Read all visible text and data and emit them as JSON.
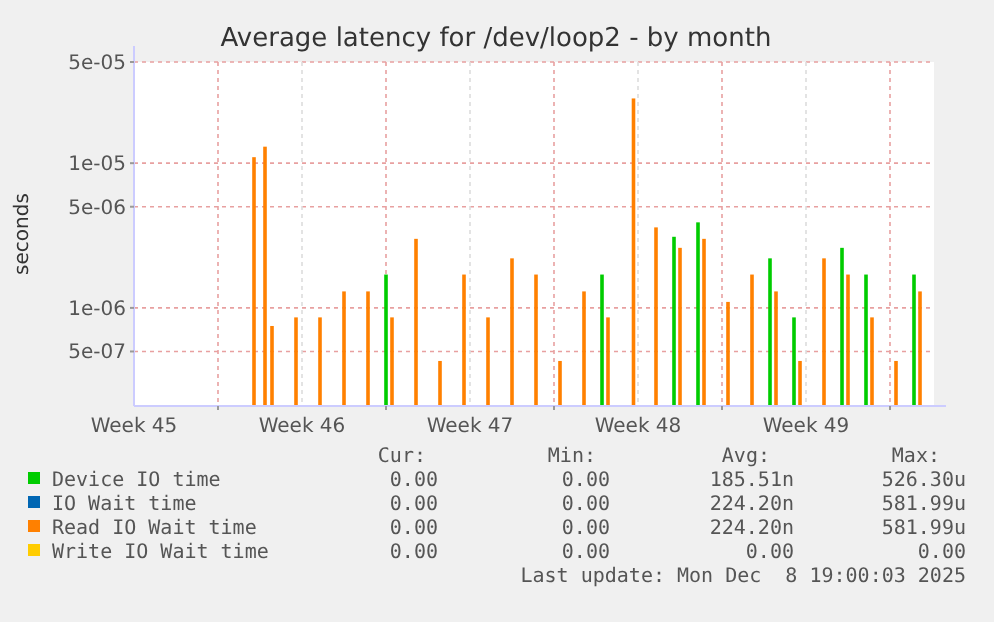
{
  "chart_data": {
    "type": "bar",
    "title": "Average latency for /dev/loop2 - by month",
    "ylabel": "seconds",
    "x": [
      "2025-11-10T10:30",
      "2025-11-10T21:30",
      "2025-11-11T04:30",
      "2025-11-12T04:30",
      "2025-11-13T04:30",
      "2025-11-14T04:30",
      "2025-11-15T04:30",
      "2025-11-16T04:30",
      "2025-11-17T04:30",
      "2025-11-18T04:30",
      "2025-11-19T04:30",
      "2025-11-20T04:30",
      "2025-11-21T04:30",
      "2025-11-22T04:30",
      "2025-11-23T04:30",
      "2025-11-24T04:30",
      "2025-11-25T04:30",
      "2025-11-26T06:00",
      "2025-11-27T04:30",
      "2025-11-28T04:30",
      "2025-11-29T04:30",
      "2025-11-30T04:30",
      "2025-12-01T04:30",
      "2025-12-02T04:30",
      "2025-12-03T04:30",
      "2025-12-04T04:30",
      "2025-12-05T04:30",
      "2025-12-06T04:30",
      "2025-12-07T04:30",
      "2025-12-08T04:30"
    ],
    "series": [
      {
        "name": "Device IO time",
        "color": "#00cc00",
        "values": [
          null,
          null,
          null,
          null,
          null,
          null,
          null,
          1.7e-06,
          null,
          null,
          null,
          null,
          null,
          null,
          null,
          null,
          1.7e-06,
          null,
          null,
          3.1e-06,
          3.9e-06,
          null,
          null,
          2.2e-06,
          8.6e-07,
          null,
          2.6e-06,
          1.7e-06,
          null,
          1.7e-06
        ]
      },
      {
        "name": "IO Wait time",
        "color": "#0066b3",
        "values": [
          null,
          null,
          null,
          null,
          null,
          null,
          null,
          null,
          null,
          null,
          null,
          null,
          null,
          null,
          null,
          null,
          null,
          null,
          null,
          null,
          null,
          null,
          null,
          null,
          null,
          null,
          null,
          null,
          null,
          null
        ]
      },
      {
        "name": "Read IO Wait time",
        "color": "#ff8000",
        "values": [
          1.1e-05,
          1.3e-05,
          7.5e-07,
          8.6e-07,
          8.6e-07,
          1.3e-06,
          1.3e-06,
          8.6e-07,
          3e-06,
          4.3e-07,
          1.7e-06,
          8.6e-07,
          2.2e-06,
          1.7e-06,
          4.3e-07,
          1.3e-06,
          8.6e-07,
          2.8e-05,
          3.6e-06,
          2.6e-06,
          3e-06,
          1.1e-06,
          1.7e-06,
          1.3e-06,
          4.3e-07,
          2.2e-06,
          1.7e-06,
          8.6e-07,
          4.3e-07,
          1.3e-06
        ]
      },
      {
        "name": "Write IO Wait time",
        "color": "#ffcc00",
        "values": [
          null,
          null,
          null,
          null,
          null,
          null,
          null,
          null,
          null,
          null,
          null,
          null,
          null,
          null,
          null,
          null,
          null,
          null,
          null,
          null,
          null,
          null,
          null,
          null,
          null,
          null,
          null,
          null,
          null,
          null
        ]
      }
    ],
    "log": "y",
    "ylim": [
      2.1e-07,
      5e-05
    ],
    "yticks": [
      {
        "value": 5e-07,
        "label": "5e-07"
      },
      {
        "value": 1e-06,
        "label": "1e-06"
      },
      {
        "value": 5e-06,
        "label": "5e-06"
      },
      {
        "value": 1e-05,
        "label": "1e-05"
      },
      {
        "value": 5e-05,
        "label": "5e-05"
      }
    ],
    "xlim": [
      "2025-11-05T12:00",
      "2025-12-08T20:00"
    ],
    "xticks": [
      {
        "value": "2025-11-05T12:00",
        "label": "Week 45"
      },
      {
        "value": "2025-11-09T00:00",
        "label": null
      },
      {
        "value": "2025-11-12T12:00",
        "label": "Week 46"
      },
      {
        "value": "2025-11-16T00:00",
        "label": null
      },
      {
        "value": "2025-11-19T12:00",
        "label": "Week 47"
      },
      {
        "value": "2025-11-23T00:00",
        "label": null
      },
      {
        "value": "2025-11-26T12:00",
        "label": "Week 48"
      },
      {
        "value": "2025-11-30T00:00",
        "label": null
      },
      {
        "value": "2025-12-03T12:00",
        "label": "Week 49"
      },
      {
        "value": "2025-12-07T00:00",
        "label": null
      }
    ],
    "grid": true,
    "legend": "bottom",
    "annotations": [
      "Cur:",
      "Min:",
      "Avg:",
      "Max:",
      "0.00",
      "0.00",
      "185.51n",
      "526.30u",
      "0.00",
      "0.00",
      "224.20n",
      "581.99u",
      "0.00",
      "0.00",
      "224.20n",
      "581.99u",
      "0.00",
      "0.00",
      "0.00",
      "0.00",
      "Last update: Mon Dec  8 19:00:03 2025"
    ]
  }
}
